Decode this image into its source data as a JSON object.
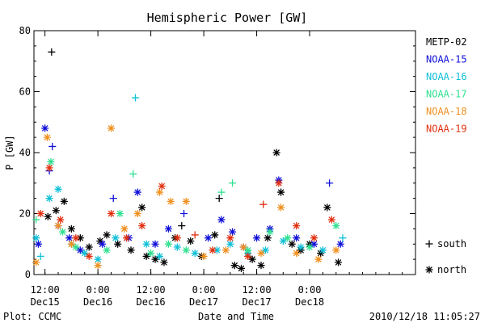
{
  "chart_data": {
    "type": "scatter",
    "title": "Hemispheric Power [GW]",
    "xlabel": "Date and Time",
    "ylabel": "P [GW]",
    "ylim": [
      0,
      80
    ],
    "yticks": [
      0,
      20,
      40,
      60,
      80
    ],
    "xlim": [
      "2010-12-15 09:30",
      "2010-12-19 00:00"
    ],
    "xticks": [
      {
        "t": "2010-12-15 12:00",
        "time": "12:00",
        "day": "Dec15"
      },
      {
        "t": "2010-12-16 00:00",
        "time": "0:00",
        "day": "Dec16"
      },
      {
        "t": "2010-12-16 12:00",
        "time": "12:00",
        "day": "Dec16"
      },
      {
        "t": "2010-12-17 00:00",
        "time": "0:00",
        "day": "Dec17"
      },
      {
        "t": "2010-12-17 12:00",
        "time": "12:00",
        "day": "Dec17"
      },
      {
        "t": "2010-12-18 00:00",
        "time": "0:00",
        "day": "Dec18"
      }
    ],
    "legend_position": "right",
    "marker_legend": [
      {
        "symbol": "plus",
        "label": "south"
      },
      {
        "symbol": "asterisk",
        "label": "north"
      }
    ],
    "series": [
      {
        "name": "METP-02",
        "color": "#000000",
        "points": [
          {
            "t": "2010-12-15 12:40",
            "v": 19,
            "hemi": "north"
          },
          {
            "t": "2010-12-15 13:30",
            "v": 73,
            "hemi": "south"
          },
          {
            "t": "2010-12-15 14:30",
            "v": 21,
            "hemi": "north"
          },
          {
            "t": "2010-12-15 16:20",
            "v": 24,
            "hemi": "north"
          },
          {
            "t": "2010-12-15 18:00",
            "v": 15,
            "hemi": "north"
          },
          {
            "t": "2010-12-15 20:00",
            "v": 12,
            "hemi": "north"
          },
          {
            "t": "2010-12-15 22:00",
            "v": 9,
            "hemi": "north"
          },
          {
            "t": "2010-12-16 00:30",
            "v": 11,
            "hemi": "north"
          },
          {
            "t": "2010-12-16 02:00",
            "v": 13,
            "hemi": "north"
          },
          {
            "t": "2010-12-16 04:30",
            "v": 10,
            "hemi": "north"
          },
          {
            "t": "2010-12-16 07:30",
            "v": 8,
            "hemi": "north"
          },
          {
            "t": "2010-12-16 10:00",
            "v": 22,
            "hemi": "north"
          },
          {
            "t": "2010-12-16 11:00",
            "v": 6,
            "hemi": "north"
          },
          {
            "t": "2010-12-16 13:00",
            "v": 5,
            "hemi": "north"
          },
          {
            "t": "2010-12-16 15:00",
            "v": 4,
            "hemi": "north"
          },
          {
            "t": "2010-12-16 17:30",
            "v": 12,
            "hemi": "north"
          },
          {
            "t": "2010-12-16 19:00",
            "v": 16,
            "hemi": "south"
          },
          {
            "t": "2010-12-16 21:00",
            "v": 11,
            "hemi": "north"
          },
          {
            "t": "2010-12-16 23:30",
            "v": 6,
            "hemi": "north"
          },
          {
            "t": "2010-12-17 02:30",
            "v": 13,
            "hemi": "north"
          },
          {
            "t": "2010-12-17 03:30",
            "v": 25,
            "hemi": "south"
          },
          {
            "t": "2010-12-17 07:00",
            "v": 3,
            "hemi": "north"
          },
          {
            "t": "2010-12-17 08:30",
            "v": 2,
            "hemi": "north"
          },
          {
            "t": "2010-12-17 11:00",
            "v": 5,
            "hemi": "north"
          },
          {
            "t": "2010-12-17 13:00",
            "v": 3,
            "hemi": "north"
          },
          {
            "t": "2010-12-17 14:30",
            "v": 12,
            "hemi": "north"
          },
          {
            "t": "2010-12-17 16:30",
            "v": 40,
            "hemi": "north"
          },
          {
            "t": "2010-12-17 17:30",
            "v": 27,
            "hemi": "north"
          },
          {
            "t": "2010-12-17 20:00",
            "v": 10,
            "hemi": "north"
          },
          {
            "t": "2010-12-17 22:00",
            "v": 8,
            "hemi": "north"
          },
          {
            "t": "2010-12-18 00:00",
            "v": 10,
            "hemi": "north"
          },
          {
            "t": "2010-12-18 02:30",
            "v": 7,
            "hemi": "north"
          },
          {
            "t": "2010-12-18 04:00",
            "v": 22,
            "hemi": "north"
          },
          {
            "t": "2010-12-18 06:30",
            "v": 4,
            "hemi": "north"
          }
        ]
      },
      {
        "name": "NOAA-15",
        "color": "#1010d8",
        "points": [
          {
            "t": "2010-12-15 10:30",
            "v": 10,
            "hemi": "north"
          },
          {
            "t": "2010-12-15 12:00",
            "v": 48,
            "hemi": "north"
          },
          {
            "t": "2010-12-15 13:00",
            "v": 34,
            "hemi": "south"
          },
          {
            "t": "2010-12-15 13:40",
            "v": 42,
            "hemi": "south"
          },
          {
            "t": "2010-12-15 15:00",
            "v": 16,
            "hemi": "north"
          },
          {
            "t": "2010-12-15 17:30",
            "v": 12,
            "hemi": "north"
          },
          {
            "t": "2010-12-15 20:00",
            "v": 8,
            "hemi": "north"
          },
          {
            "t": "2010-12-16 01:00",
            "v": 10,
            "hemi": "north"
          },
          {
            "t": "2010-12-16 03:30",
            "v": 25,
            "hemi": "south"
          },
          {
            "t": "2010-12-16 07:00",
            "v": 12,
            "hemi": "north"
          },
          {
            "t": "2010-12-16 09:00",
            "v": 27,
            "hemi": "north"
          },
          {
            "t": "2010-12-16 13:00",
            "v": 10,
            "hemi": "north"
          },
          {
            "t": "2010-12-16 16:00",
            "v": 15,
            "hemi": "north"
          },
          {
            "t": "2010-12-16 19:30",
            "v": 20,
            "hemi": "south"
          },
          {
            "t": "2010-12-17 01:00",
            "v": 12,
            "hemi": "north"
          },
          {
            "t": "2010-12-17 04:00",
            "v": 18,
            "hemi": "north"
          },
          {
            "t": "2010-12-17 06:30",
            "v": 14,
            "hemi": "north"
          },
          {
            "t": "2010-12-17 09:00",
            "v": 9,
            "hemi": "north"
          },
          {
            "t": "2010-12-17 12:00",
            "v": 12,
            "hemi": "north"
          },
          {
            "t": "2010-12-17 15:00",
            "v": 15,
            "hemi": "north"
          },
          {
            "t": "2010-12-17 17:00",
            "v": 31,
            "hemi": "north"
          },
          {
            "t": "2010-12-17 21:00",
            "v": 12,
            "hemi": "north"
          },
          {
            "t": "2010-12-18 01:00",
            "v": 10,
            "hemi": "north"
          },
          {
            "t": "2010-12-18 04:30",
            "v": 30,
            "hemi": "south"
          },
          {
            "t": "2010-12-18 07:00",
            "v": 10,
            "hemi": "north"
          }
        ]
      },
      {
        "name": "NOAA-16",
        "color": "#10c0d8",
        "points": [
          {
            "t": "2010-12-15 10:00",
            "v": 12,
            "hemi": "north"
          },
          {
            "t": "2010-12-15 11:00",
            "v": 6,
            "hemi": "south"
          },
          {
            "t": "2010-12-15 13:00",
            "v": 25,
            "hemi": "north"
          },
          {
            "t": "2010-12-15 15:00",
            "v": 28,
            "hemi": "north"
          },
          {
            "t": "2010-12-15 18:00",
            "v": 10,
            "hemi": "north"
          },
          {
            "t": "2010-12-15 21:00",
            "v": 7,
            "hemi": "north"
          },
          {
            "t": "2010-12-16 00:00",
            "v": 5,
            "hemi": "north"
          },
          {
            "t": "2010-12-16 04:00",
            "v": 12,
            "hemi": "north"
          },
          {
            "t": "2010-12-16 08:30",
            "v": 58,
            "hemi": "south"
          },
          {
            "t": "2010-12-16 11:00",
            "v": 10,
            "hemi": "north"
          },
          {
            "t": "2010-12-16 14:00",
            "v": 6,
            "hemi": "north"
          },
          {
            "t": "2010-12-16 18:00",
            "v": 9,
            "hemi": "north"
          },
          {
            "t": "2010-12-16 22:00",
            "v": 7,
            "hemi": "north"
          },
          {
            "t": "2010-12-17 03:00",
            "v": 8,
            "hemi": "north"
          },
          {
            "t": "2010-12-17 06:00",
            "v": 10,
            "hemi": "north"
          },
          {
            "t": "2010-12-17 10:00",
            "v": 7,
            "hemi": "north"
          },
          {
            "t": "2010-12-17 14:00",
            "v": 8,
            "hemi": "north"
          },
          {
            "t": "2010-12-17 18:00",
            "v": 11,
            "hemi": "north"
          },
          {
            "t": "2010-12-17 22:00",
            "v": 9,
            "hemi": "north"
          },
          {
            "t": "2010-12-18 03:00",
            "v": 8,
            "hemi": "north"
          },
          {
            "t": "2010-12-18 07:30",
            "v": 12,
            "hemi": "south"
          }
        ]
      },
      {
        "name": "NOAA-17",
        "color": "#30e090",
        "points": [
          {
            "t": "2010-12-15 10:00",
            "v": 18,
            "hemi": "south"
          },
          {
            "t": "2010-12-15 13:20",
            "v": 37,
            "hemi": "north"
          },
          {
            "t": "2010-12-15 16:00",
            "v": 14,
            "hemi": "north"
          },
          {
            "t": "2010-12-15 19:00",
            "v": 9,
            "hemi": "north"
          },
          {
            "t": "2010-12-16 02:00",
            "v": 8,
            "hemi": "north"
          },
          {
            "t": "2010-12-16 05:00",
            "v": 20,
            "hemi": "north"
          },
          {
            "t": "2010-12-16 08:00",
            "v": 33,
            "hemi": "south"
          },
          {
            "t": "2010-12-16 12:00",
            "v": 7,
            "hemi": "north"
          },
          {
            "t": "2010-12-16 16:00",
            "v": 10,
            "hemi": "north"
          },
          {
            "t": "2010-12-16 20:00",
            "v": 8,
            "hemi": "north"
          },
          {
            "t": "2010-12-17 04:00",
            "v": 27,
            "hemi": "south"
          },
          {
            "t": "2010-12-17 06:30",
            "v": 30,
            "hemi": "south"
          },
          {
            "t": "2010-12-17 10:00",
            "v": 8,
            "hemi": "north"
          },
          {
            "t": "2010-12-17 15:00",
            "v": 14,
            "hemi": "north"
          },
          {
            "t": "2010-12-17 19:00",
            "v": 12,
            "hemi": "north"
          },
          {
            "t": "2010-12-18 00:00",
            "v": 9,
            "hemi": "north"
          },
          {
            "t": "2010-12-18 06:00",
            "v": 16,
            "hemi": "north"
          }
        ]
      },
      {
        "name": "NOAA-18",
        "color": "#f09020",
        "points": [
          {
            "t": "2010-12-15 10:00",
            "v": 4,
            "hemi": "north"
          },
          {
            "t": "2010-12-15 12:30",
            "v": 45,
            "hemi": "north"
          },
          {
            "t": "2010-12-15 15:00",
            "v": 16,
            "hemi": "north"
          },
          {
            "t": "2010-12-15 18:00",
            "v": 10,
            "hemi": "north"
          },
          {
            "t": "2010-12-16 00:00",
            "v": 3,
            "hemi": "north"
          },
          {
            "t": "2010-12-16 03:00",
            "v": 48,
            "hemi": "north"
          },
          {
            "t": "2010-12-16 06:00",
            "v": 15,
            "hemi": "north"
          },
          {
            "t": "2010-12-16 09:00",
            "v": 20,
            "hemi": "north"
          },
          {
            "t": "2010-12-16 14:00",
            "v": 27,
            "hemi": "north"
          },
          {
            "t": "2010-12-16 16:30",
            "v": 24,
            "hemi": "north"
          },
          {
            "t": "2010-12-16 20:00",
            "v": 24,
            "hemi": "north"
          },
          {
            "t": "2010-12-17 00:00",
            "v": 6,
            "hemi": "north"
          },
          {
            "t": "2010-12-17 05:00",
            "v": 8,
            "hemi": "north"
          },
          {
            "t": "2010-12-17 09:00",
            "v": 9,
            "hemi": "north"
          },
          {
            "t": "2010-12-17 13:00",
            "v": 7,
            "hemi": "north"
          },
          {
            "t": "2010-12-17 17:30",
            "v": 22,
            "hemi": "north"
          },
          {
            "t": "2010-12-17 21:00",
            "v": 7,
            "hemi": "north"
          },
          {
            "t": "2010-12-18 02:00",
            "v": 5,
            "hemi": "north"
          },
          {
            "t": "2010-12-18 06:00",
            "v": 8,
            "hemi": "north"
          }
        ]
      },
      {
        "name": "NOAA-19",
        "color": "#e03010",
        "points": [
          {
            "t": "2010-12-15 11:00",
            "v": 20,
            "hemi": "north"
          },
          {
            "t": "2010-12-15 13:00",
            "v": 35,
            "hemi": "north"
          },
          {
            "t": "2010-12-15 15:30",
            "v": 18,
            "hemi": "north"
          },
          {
            "t": "2010-12-15 19:00",
            "v": 12,
            "hemi": "north"
          },
          {
            "t": "2010-12-15 22:00",
            "v": 6,
            "hemi": "north"
          },
          {
            "t": "2010-12-16 03:00",
            "v": 20,
            "hemi": "north"
          },
          {
            "t": "2010-12-16 06:30",
            "v": 12,
            "hemi": "north"
          },
          {
            "t": "2010-12-16 10:00",
            "v": 16,
            "hemi": "north"
          },
          {
            "t": "2010-12-16 14:30",
            "v": 29,
            "hemi": "north"
          },
          {
            "t": "2010-12-16 18:00",
            "v": 12,
            "hemi": "north"
          },
          {
            "t": "2010-12-16 22:00",
            "v": 13,
            "hemi": "south"
          },
          {
            "t": "2010-12-17 02:00",
            "v": 8,
            "hemi": "north"
          },
          {
            "t": "2010-12-17 06:00",
            "v": 12,
            "hemi": "north"
          },
          {
            "t": "2010-12-17 10:00",
            "v": 6,
            "hemi": "north"
          },
          {
            "t": "2010-12-17 13:30",
            "v": 23,
            "hemi": "south"
          },
          {
            "t": "2010-12-17 17:00",
            "v": 30,
            "hemi": "north"
          },
          {
            "t": "2010-12-17 21:00",
            "v": 16,
            "hemi": "north"
          },
          {
            "t": "2010-12-18 01:00",
            "v": 12,
            "hemi": "north"
          },
          {
            "t": "2010-12-18 05:00",
            "v": 18,
            "hemi": "north"
          }
        ]
      }
    ]
  },
  "footer": {
    "left": "Plot: CCMC",
    "right": "2010/12/18 11:05:27"
  }
}
